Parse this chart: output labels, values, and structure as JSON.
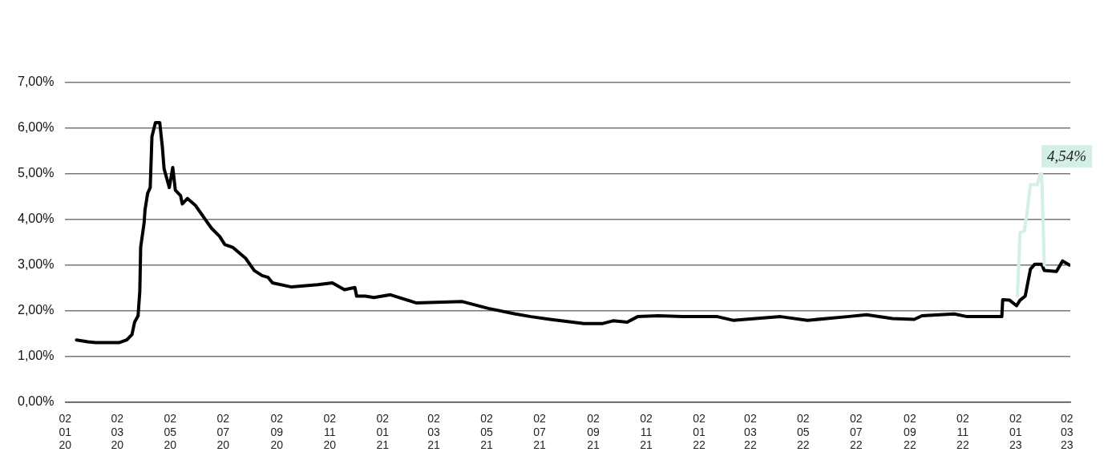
{
  "chart_data": {
    "type": "line",
    "xlim": [
      "2020-01-02",
      "2023-03-06"
    ],
    "ylim": [
      0,
      7
    ],
    "yticks": [
      {
        "value": 0,
        "label": "0,00%"
      },
      {
        "value": 1,
        "label": "1,00%"
      },
      {
        "value": 2,
        "label": "2,00%"
      },
      {
        "value": 3,
        "label": "3,00%"
      },
      {
        "value": 4,
        "label": "4,00%"
      },
      {
        "value": 5,
        "label": "5,00%"
      },
      {
        "value": 6,
        "label": "6,00%"
      },
      {
        "value": 7,
        "label": "7,00%"
      }
    ],
    "xticks": [
      {
        "value": "2020-01-02",
        "label": "02 01 20"
      },
      {
        "value": "2020-03-02",
        "label": "02 03 20"
      },
      {
        "value": "2020-05-02",
        "label": "02 05 20"
      },
      {
        "value": "2020-07-02",
        "label": "02 07 20"
      },
      {
        "value": "2020-09-02",
        "label": "02 09 20"
      },
      {
        "value": "2020-11-02",
        "label": "02 11 20"
      },
      {
        "value": "2021-01-02",
        "label": "02 01 21"
      },
      {
        "value": "2021-03-02",
        "label": "02 03 21"
      },
      {
        "value": "2021-05-02",
        "label": "02 05 21"
      },
      {
        "value": "2021-07-02",
        "label": "02 07 21"
      },
      {
        "value": "2021-09-02",
        "label": "02 09 21"
      },
      {
        "value": "2021-11-02",
        "label": "02 11 21"
      },
      {
        "value": "2022-01-02",
        "label": "02 01 22"
      },
      {
        "value": "2022-03-02",
        "label": "02 03 22"
      },
      {
        "value": "2022-05-02",
        "label": "02 05 22"
      },
      {
        "value": "2022-07-02",
        "label": "02 07 22"
      },
      {
        "value": "2022-09-02",
        "label": "02 09 22"
      },
      {
        "value": "2022-11-02",
        "label": "02 11 22"
      },
      {
        "value": "2023-01-02",
        "label": "02 01 23"
      },
      {
        "value": "2023-03-02",
        "label": "02 03 23"
      }
    ],
    "grid": "y",
    "legend": false,
    "marker": "none",
    "line_style": "solid",
    "annotations": [
      "4,54%"
    ],
    "series": [
      {
        "color": "#d4efe3",
        "x": [
          "2023-01-04",
          "2023-01-07",
          "2023-01-12",
          "2023-01-15",
          "2023-01-19",
          "2023-01-27",
          "2023-01-30",
          "2023-02-01",
          "2023-02-04"
        ],
        "values": [
          2.32,
          3.71,
          3.75,
          4.13,
          4.76,
          4.76,
          5.0,
          5.0,
          3.0
        ]
      },
      {
        "color": "#000000",
        "x": [
          "2020-01-15",
          "2020-01-28",
          "2020-02-06",
          "2020-03-04",
          "2020-03-13",
          "2020-03-19",
          "2020-03-22",
          "2020-03-26",
          "2020-03-28",
          "2020-03-29",
          "2020-04-02",
          "2020-04-03",
          "2020-04-06",
          "2020-04-09",
          "2020-04-11",
          "2020-04-15",
          "2020-04-20",
          "2020-04-23",
          "2020-04-25",
          "2020-05-01",
          "2020-05-05",
          "2020-05-08",
          "2020-05-14",
          "2020-05-16",
          "2020-05-22",
          "2020-05-31",
          "2020-06-10",
          "2020-06-19",
          "2020-06-28",
          "2020-07-04",
          "2020-07-13",
          "2020-07-28",
          "2020-08-07",
          "2020-08-16",
          "2020-08-23",
          "2020-08-28",
          "2020-09-19",
          "2020-10-19",
          "2020-11-05",
          "2020-11-19",
          "2020-12-01",
          "2020-12-03",
          "2020-12-13",
          "2020-12-23",
          "2021-01-11",
          "2021-02-10",
          "2021-04-04",
          "2021-05-04",
          "2021-06-04",
          "2021-06-22",
          "2021-07-14",
          "2021-08-22",
          "2021-09-13",
          "2021-09-25",
          "2021-10-11",
          "2021-10-23",
          "2021-11-16",
          "2021-12-14",
          "2022-01-23",
          "2022-02-10",
          "2022-04-06",
          "2022-05-07",
          "2022-06-22",
          "2022-07-14",
          "2022-08-13",
          "2022-09-07",
          "2022-09-16",
          "2022-10-23",
          "2022-11-07",
          "2022-12-17",
          "2022-12-18",
          "2022-12-26",
          "2023-01-03",
          "2023-01-07",
          "2023-01-13",
          "2023-01-19",
          "2023-01-24",
          "2023-02-01",
          "2023-02-04",
          "2023-02-18",
          "2023-02-25",
          "2023-03-05"
        ],
        "values": [
          1.36,
          1.32,
          1.3,
          1.3,
          1.36,
          1.48,
          1.75,
          1.89,
          2.43,
          3.39,
          3.93,
          4.21,
          4.57,
          4.7,
          5.82,
          6.12,
          6.12,
          5.59,
          5.11,
          4.7,
          5.14,
          4.64,
          4.52,
          4.34,
          4.46,
          4.31,
          4.04,
          3.8,
          3.63,
          3.45,
          3.39,
          3.15,
          2.88,
          2.77,
          2.73,
          2.61,
          2.52,
          2.57,
          2.61,
          2.46,
          2.51,
          2.32,
          2.32,
          2.29,
          2.35,
          2.17,
          2.2,
          2.05,
          1.93,
          1.87,
          1.81,
          1.72,
          1.72,
          1.78,
          1.75,
          1.87,
          1.89,
          1.87,
          1.87,
          1.79,
          1.87,
          1.79,
          1.87,
          1.91,
          1.83,
          1.81,
          1.89,
          1.93,
          1.87,
          1.87,
          2.24,
          2.23,
          2.11,
          2.23,
          2.32,
          2.91,
          3.02,
          3.02,
          2.88,
          2.86,
          3.09,
          3.0
        ]
      }
    ]
  }
}
